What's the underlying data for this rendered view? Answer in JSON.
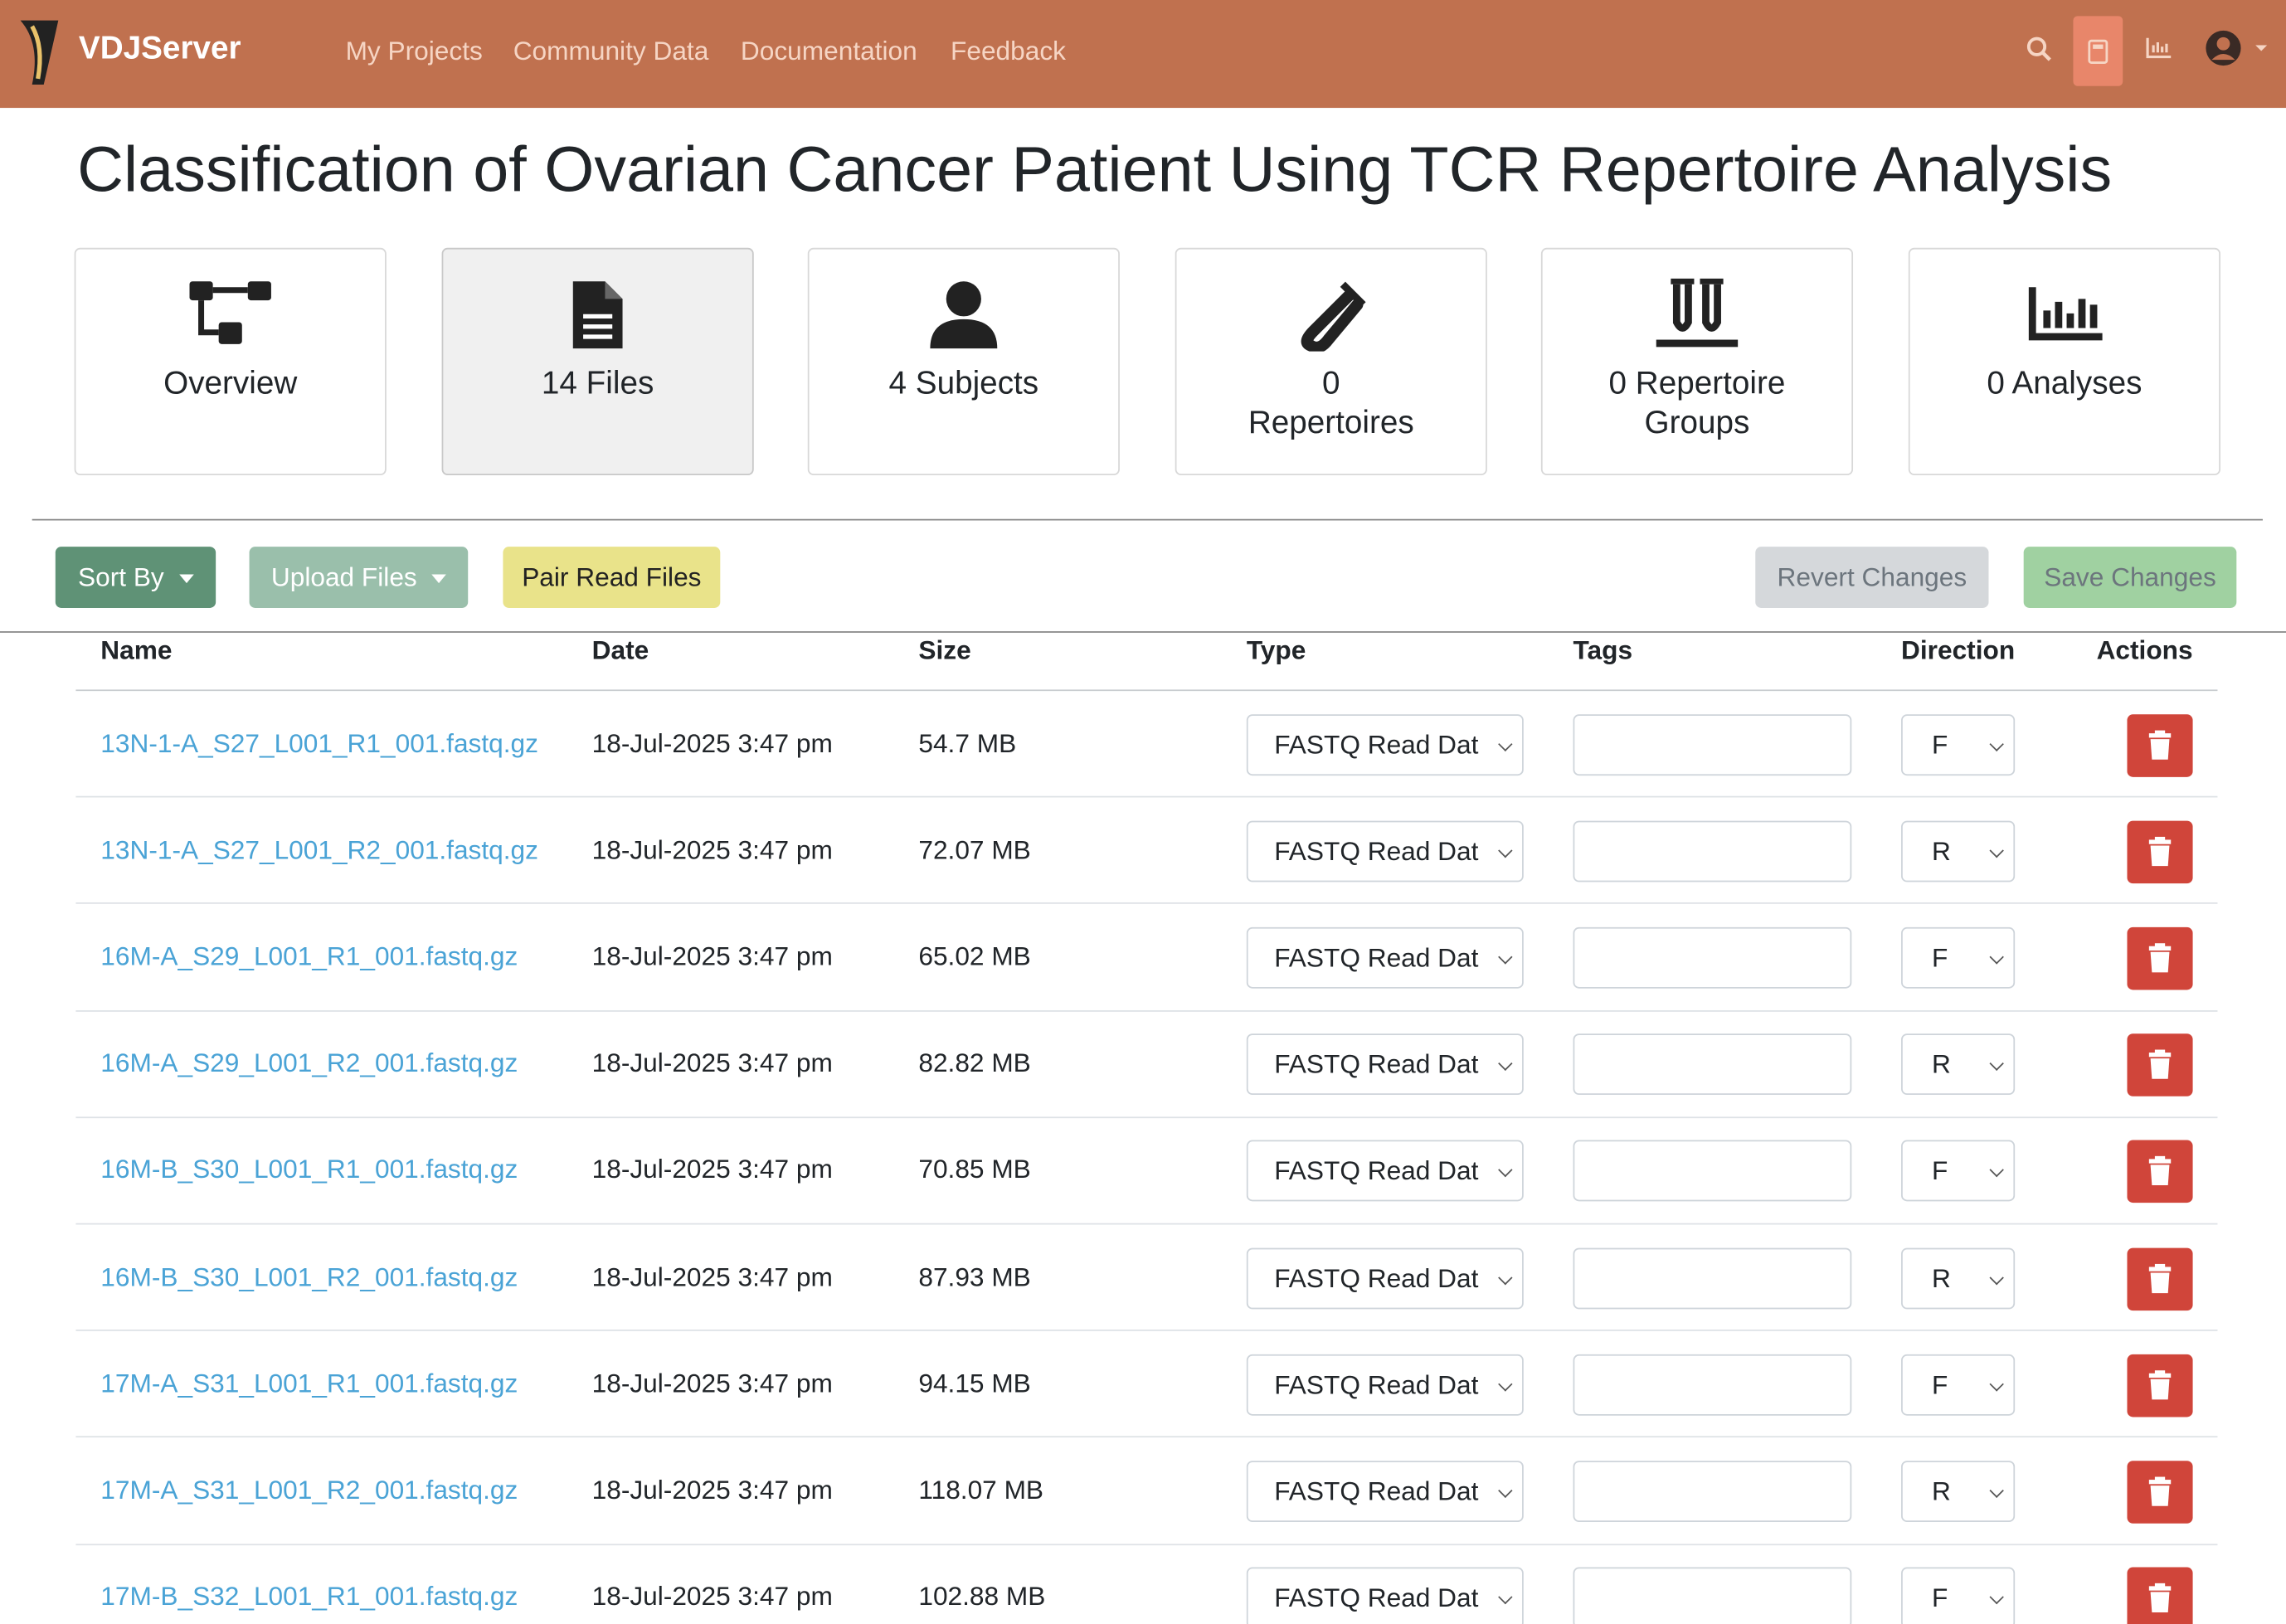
{
  "navbar": {
    "brand": "VDJServer",
    "links": [
      "My Projects",
      "Community Data",
      "Documentation",
      "Feedback"
    ]
  },
  "title": "Classification of Ovarian Cancer Patient Using TCR Repertoire Analysis",
  "tiles": [
    "Overview",
    "14 Files",
    "4 Subjects",
    "0 Repertoires",
    "0 Repertoire Groups",
    "0 Analyses"
  ],
  "toolbar": {
    "sort": "Sort By",
    "upload": "Upload Files",
    "pair": "Pair Read Files",
    "revert": "Revert Changes",
    "save": "Save Changes"
  },
  "table": {
    "headers": [
      "Name",
      "Date",
      "Size",
      "Type",
      "Tags",
      "Direction",
      "Actions"
    ],
    "rows": [
      {
        "name": "13N-1-A_S27_L001_R1_001.fastq.gz",
        "date": "18-Jul-2025 3:47 pm",
        "size": "54.7 MB",
        "type": "FASTQ Read Dat",
        "direction": "F"
      },
      {
        "name": "13N-1-A_S27_L001_R2_001.fastq.gz",
        "date": "18-Jul-2025 3:47 pm",
        "size": "72.07 MB",
        "type": "FASTQ Read Dat",
        "direction": "R"
      },
      {
        "name": "16M-A_S29_L001_R1_001.fastq.gz",
        "date": "18-Jul-2025 3:47 pm",
        "size": "65.02 MB",
        "type": "FASTQ Read Dat",
        "direction": "F"
      },
      {
        "name": "16M-A_S29_L001_R2_001.fastq.gz",
        "date": "18-Jul-2025 3:47 pm",
        "size": "82.82 MB",
        "type": "FASTQ Read Dat",
        "direction": "R"
      },
      {
        "name": "16M-B_S30_L001_R1_001.fastq.gz",
        "date": "18-Jul-2025 3:47 pm",
        "size": "70.85 MB",
        "type": "FASTQ Read Dat",
        "direction": "F"
      },
      {
        "name": "16M-B_S30_L001_R2_001.fastq.gz",
        "date": "18-Jul-2025 3:47 pm",
        "size": "87.93 MB",
        "type": "FASTQ Read Dat",
        "direction": "R"
      },
      {
        "name": "17M-A_S31_L001_R1_001.fastq.gz",
        "date": "18-Jul-2025 3:47 pm",
        "size": "94.15 MB",
        "type": "FASTQ Read Dat",
        "direction": "F"
      },
      {
        "name": "17M-A_S31_L001_R2_001.fastq.gz",
        "date": "18-Jul-2025 3:47 pm",
        "size": "118.07 MB",
        "type": "FASTQ Read Dat",
        "direction": "R"
      },
      {
        "name": "17M-B_S32_L001_R1_001.fastq.gz",
        "date": "18-Jul-2025 3:47 pm",
        "size": "102.88 MB",
        "type": "FASTQ Read Dat",
        "direction": "F"
      }
    ]
  }
}
